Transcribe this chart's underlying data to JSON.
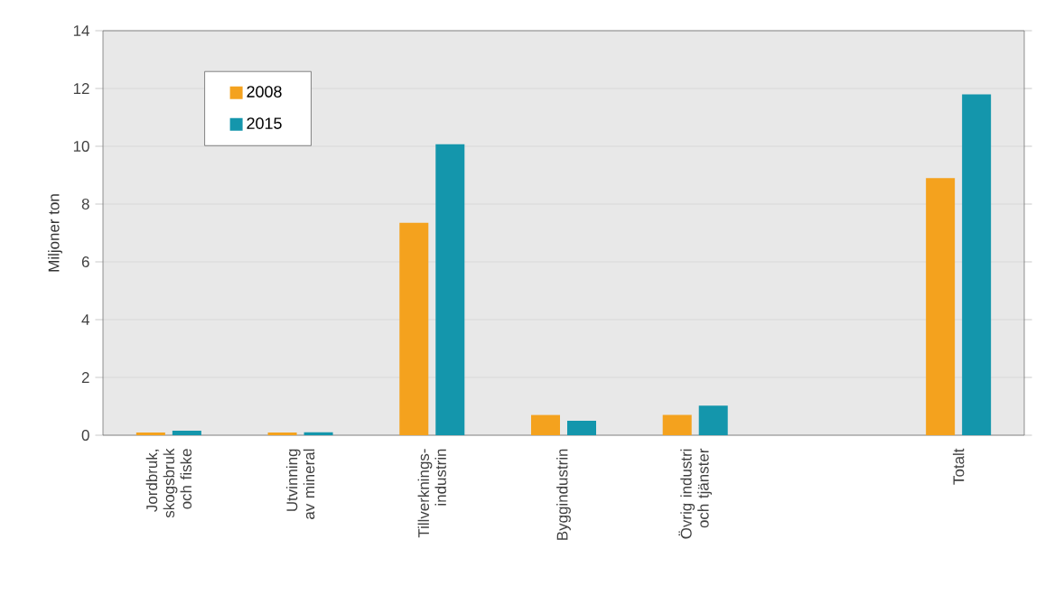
{
  "chart_data": {
    "type": "bar",
    "ylabel": "Miljoner ton",
    "categories": [
      "Jordbruk, skogsbruk och fiske",
      "Utvinning av mineral",
      "Tillverknings-industrin",
      "Byggindustrin",
      "Övrig industri och tjänster",
      null,
      "Totalt"
    ],
    "series": [
      {
        "name": "2008",
        "color": "#f4a21e",
        "values": [
          0.09,
          0.09,
          7.35,
          0.7,
          0.7,
          null,
          8.9
        ]
      },
      {
        "name": "2015",
        "color": "#1496ac",
        "values": [
          0.16,
          0.1,
          10.07,
          0.5,
          1.02,
          null,
          11.8
        ]
      }
    ],
    "ylim": [
      0,
      14
    ],
    "yticks": [
      0,
      2,
      4,
      6,
      8,
      10,
      12,
      14
    ],
    "grid": "y",
    "legend": "top left"
  }
}
